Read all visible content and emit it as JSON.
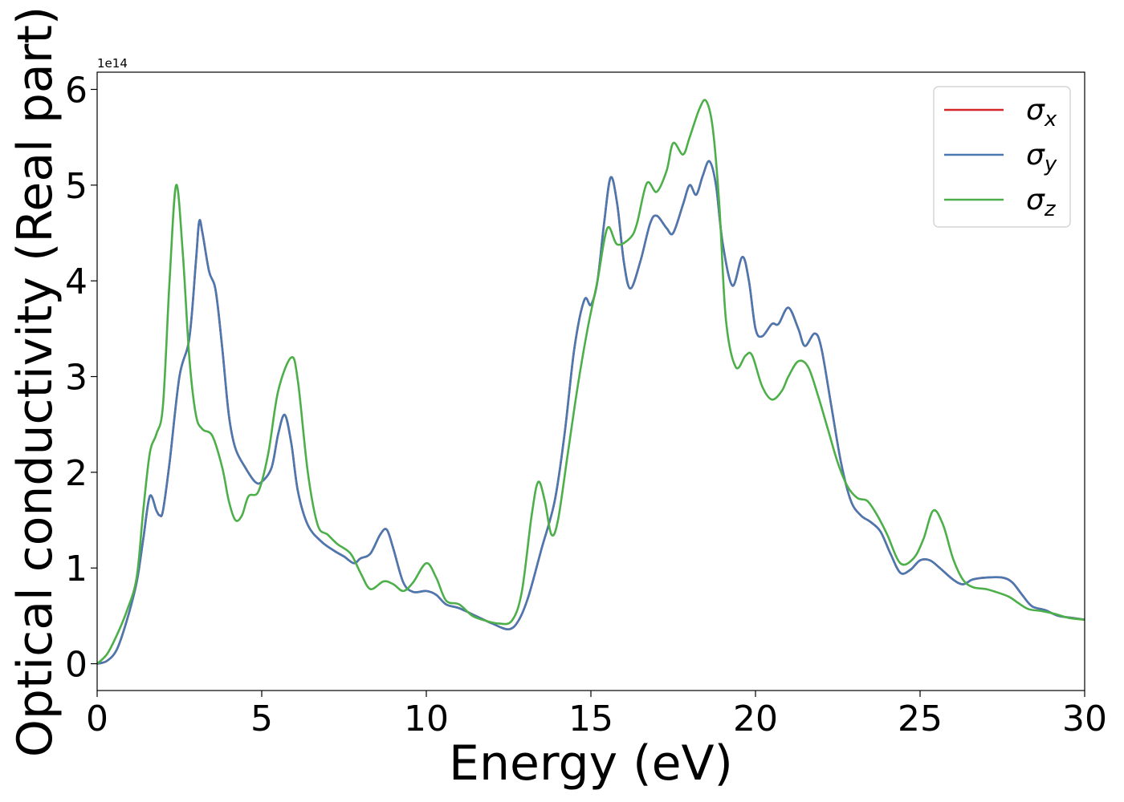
{
  "chart_data": {
    "type": "line",
    "xlabel": "Energy (eV)",
    "ylabel": "Optical conductivity (Real part)",
    "y_offset_label": "1e14",
    "xlim": [
      0,
      30
    ],
    "ylim": [
      -0.28,
      6.18
    ],
    "x_ticks": [
      0,
      5,
      10,
      15,
      20,
      25,
      30
    ],
    "y_ticks": [
      0,
      1,
      2,
      3,
      4,
      5,
      6
    ],
    "grid": false,
    "legend_position": "top-right",
    "series": [
      {
        "name": "σx",
        "color": "#d62728",
        "points": [
          [
            0,
            0
          ],
          [
            0.3,
            0.03
          ],
          [
            0.6,
            0.15
          ],
          [
            0.9,
            0.45
          ],
          [
            1.2,
            0.85
          ],
          [
            1.4,
            1.3
          ],
          [
            1.6,
            1.75
          ],
          [
            1.8,
            1.6
          ],
          [
            1.9,
            1.55
          ],
          [
            2.0,
            1.6
          ],
          [
            2.2,
            2.1
          ],
          [
            2.5,
            3.0
          ],
          [
            2.8,
            3.4
          ],
          [
            3.0,
            4.2
          ],
          [
            3.1,
            4.62
          ],
          [
            3.2,
            4.5
          ],
          [
            3.4,
            4.1
          ],
          [
            3.6,
            3.9
          ],
          [
            3.8,
            3.3
          ],
          [
            4.0,
            2.6
          ],
          [
            4.2,
            2.25
          ],
          [
            4.5,
            2.05
          ],
          [
            4.8,
            1.9
          ],
          [
            5.0,
            1.9
          ],
          [
            5.3,
            2.05
          ],
          [
            5.5,
            2.4
          ],
          [
            5.7,
            2.6
          ],
          [
            5.9,
            2.3
          ],
          [
            6.1,
            1.8
          ],
          [
            6.4,
            1.45
          ],
          [
            6.8,
            1.28
          ],
          [
            7.2,
            1.18
          ],
          [
            7.5,
            1.12
          ],
          [
            7.8,
            1.05
          ],
          [
            8.0,
            1.1
          ],
          [
            8.3,
            1.15
          ],
          [
            8.6,
            1.35
          ],
          [
            8.8,
            1.4
          ],
          [
            9.0,
            1.2
          ],
          [
            9.3,
            0.85
          ],
          [
            9.6,
            0.75
          ],
          [
            10.0,
            0.76
          ],
          [
            10.3,
            0.72
          ],
          [
            10.6,
            0.62
          ],
          [
            11.0,
            0.58
          ],
          [
            11.5,
            0.5
          ],
          [
            12.0,
            0.42
          ],
          [
            12.5,
            0.36
          ],
          [
            12.8,
            0.45
          ],
          [
            13.1,
            0.7
          ],
          [
            13.5,
            1.2
          ],
          [
            13.9,
            1.7
          ],
          [
            14.2,
            2.4
          ],
          [
            14.5,
            3.3
          ],
          [
            14.8,
            3.8
          ],
          [
            15.0,
            3.75
          ],
          [
            15.2,
            4.0
          ],
          [
            15.4,
            4.6
          ],
          [
            15.6,
            5.08
          ],
          [
            15.8,
            4.8
          ],
          [
            16.0,
            4.2
          ],
          [
            16.2,
            3.92
          ],
          [
            16.5,
            4.2
          ],
          [
            16.8,
            4.6
          ],
          [
            17.0,
            4.68
          ],
          [
            17.3,
            4.55
          ],
          [
            17.5,
            4.5
          ],
          [
            17.8,
            4.8
          ],
          [
            18.0,
            5.0
          ],
          [
            18.2,
            4.9
          ],
          [
            18.4,
            5.1
          ],
          [
            18.6,
            5.25
          ],
          [
            18.8,
            5.0
          ],
          [
            19.0,
            4.4
          ],
          [
            19.3,
            3.95
          ],
          [
            19.6,
            4.25
          ],
          [
            19.8,
            4.0
          ],
          [
            20.0,
            3.5
          ],
          [
            20.2,
            3.42
          ],
          [
            20.5,
            3.55
          ],
          [
            20.7,
            3.55
          ],
          [
            21.0,
            3.72
          ],
          [
            21.3,
            3.5
          ],
          [
            21.5,
            3.32
          ],
          [
            21.8,
            3.45
          ],
          [
            22.0,
            3.3
          ],
          [
            22.3,
            2.7
          ],
          [
            22.6,
            2.1
          ],
          [
            22.9,
            1.7
          ],
          [
            23.2,
            1.55
          ],
          [
            23.5,
            1.48
          ],
          [
            23.8,
            1.38
          ],
          [
            24.1,
            1.15
          ],
          [
            24.4,
            0.95
          ],
          [
            24.7,
            0.98
          ],
          [
            25.0,
            1.08
          ],
          [
            25.3,
            1.08
          ],
          [
            25.6,
            1.0
          ],
          [
            26.0,
            0.88
          ],
          [
            26.3,
            0.83
          ],
          [
            26.6,
            0.88
          ],
          [
            27.0,
            0.9
          ],
          [
            27.5,
            0.9
          ],
          [
            27.8,
            0.85
          ],
          [
            28.1,
            0.72
          ],
          [
            28.4,
            0.6
          ],
          [
            28.8,
            0.56
          ],
          [
            29.2,
            0.5
          ],
          [
            29.6,
            0.48
          ],
          [
            30.0,
            0.46
          ]
        ]
      },
      {
        "name": "σy",
        "color": "#4a78b0",
        "points": [
          [
            0,
            0
          ],
          [
            0.3,
            0.03
          ],
          [
            0.6,
            0.15
          ],
          [
            0.9,
            0.45
          ],
          [
            1.2,
            0.85
          ],
          [
            1.4,
            1.3
          ],
          [
            1.6,
            1.75
          ],
          [
            1.8,
            1.6
          ],
          [
            1.9,
            1.55
          ],
          [
            2.0,
            1.6
          ],
          [
            2.2,
            2.1
          ],
          [
            2.5,
            3.0
          ],
          [
            2.8,
            3.4
          ],
          [
            3.0,
            4.2
          ],
          [
            3.1,
            4.62
          ],
          [
            3.2,
            4.5
          ],
          [
            3.4,
            4.1
          ],
          [
            3.6,
            3.9
          ],
          [
            3.8,
            3.3
          ],
          [
            4.0,
            2.6
          ],
          [
            4.2,
            2.25
          ],
          [
            4.5,
            2.05
          ],
          [
            4.8,
            1.9
          ],
          [
            5.0,
            1.9
          ],
          [
            5.3,
            2.05
          ],
          [
            5.5,
            2.4
          ],
          [
            5.7,
            2.6
          ],
          [
            5.9,
            2.3
          ],
          [
            6.1,
            1.8
          ],
          [
            6.4,
            1.45
          ],
          [
            6.8,
            1.28
          ],
          [
            7.2,
            1.18
          ],
          [
            7.5,
            1.12
          ],
          [
            7.8,
            1.05
          ],
          [
            8.0,
            1.1
          ],
          [
            8.3,
            1.15
          ],
          [
            8.6,
            1.35
          ],
          [
            8.8,
            1.4
          ],
          [
            9.0,
            1.2
          ],
          [
            9.3,
            0.85
          ],
          [
            9.6,
            0.75
          ],
          [
            10.0,
            0.76
          ],
          [
            10.3,
            0.72
          ],
          [
            10.6,
            0.62
          ],
          [
            11.0,
            0.58
          ],
          [
            11.5,
            0.5
          ],
          [
            12.0,
            0.42
          ],
          [
            12.5,
            0.36
          ],
          [
            12.8,
            0.45
          ],
          [
            13.1,
            0.7
          ],
          [
            13.5,
            1.2
          ],
          [
            13.9,
            1.7
          ],
          [
            14.2,
            2.4
          ],
          [
            14.5,
            3.3
          ],
          [
            14.8,
            3.8
          ],
          [
            15.0,
            3.75
          ],
          [
            15.2,
            4.0
          ],
          [
            15.4,
            4.6
          ],
          [
            15.6,
            5.08
          ],
          [
            15.8,
            4.8
          ],
          [
            16.0,
            4.2
          ],
          [
            16.2,
            3.92
          ],
          [
            16.5,
            4.2
          ],
          [
            16.8,
            4.6
          ],
          [
            17.0,
            4.68
          ],
          [
            17.3,
            4.55
          ],
          [
            17.5,
            4.5
          ],
          [
            17.8,
            4.8
          ],
          [
            18.0,
            5.0
          ],
          [
            18.2,
            4.9
          ],
          [
            18.4,
            5.1
          ],
          [
            18.6,
            5.25
          ],
          [
            18.8,
            5.0
          ],
          [
            19.0,
            4.4
          ],
          [
            19.3,
            3.95
          ],
          [
            19.6,
            4.25
          ],
          [
            19.8,
            4.0
          ],
          [
            20.0,
            3.5
          ],
          [
            20.2,
            3.42
          ],
          [
            20.5,
            3.55
          ],
          [
            20.7,
            3.55
          ],
          [
            21.0,
            3.72
          ],
          [
            21.3,
            3.5
          ],
          [
            21.5,
            3.32
          ],
          [
            21.8,
            3.45
          ],
          [
            22.0,
            3.3
          ],
          [
            22.3,
            2.7
          ],
          [
            22.6,
            2.1
          ],
          [
            22.9,
            1.7
          ],
          [
            23.2,
            1.55
          ],
          [
            23.5,
            1.48
          ],
          [
            23.8,
            1.38
          ],
          [
            24.1,
            1.15
          ],
          [
            24.4,
            0.95
          ],
          [
            24.7,
            0.98
          ],
          [
            25.0,
            1.08
          ],
          [
            25.3,
            1.08
          ],
          [
            25.6,
            1.0
          ],
          [
            26.0,
            0.88
          ],
          [
            26.3,
            0.83
          ],
          [
            26.6,
            0.88
          ],
          [
            27.0,
            0.9
          ],
          [
            27.5,
            0.9
          ],
          [
            27.8,
            0.85
          ],
          [
            28.1,
            0.72
          ],
          [
            28.4,
            0.6
          ],
          [
            28.8,
            0.56
          ],
          [
            29.2,
            0.5
          ],
          [
            29.6,
            0.48
          ],
          [
            30.0,
            0.46
          ]
        ]
      },
      {
        "name": "σz",
        "color": "#4daf4a",
        "points": [
          [
            0,
            0
          ],
          [
            0.3,
            0.1
          ],
          [
            0.6,
            0.3
          ],
          [
            0.9,
            0.55
          ],
          [
            1.2,
            0.9
          ],
          [
            1.4,
            1.6
          ],
          [
            1.6,
            2.2
          ],
          [
            1.8,
            2.4
          ],
          [
            2.0,
            2.7
          ],
          [
            2.2,
            4.0
          ],
          [
            2.4,
            5.0
          ],
          [
            2.6,
            4.3
          ],
          [
            2.8,
            3.2
          ],
          [
            3.0,
            2.6
          ],
          [
            3.2,
            2.45
          ],
          [
            3.5,
            2.38
          ],
          [
            3.8,
            2.05
          ],
          [
            4.0,
            1.7
          ],
          [
            4.2,
            1.5
          ],
          [
            4.4,
            1.55
          ],
          [
            4.6,
            1.75
          ],
          [
            4.9,
            1.8
          ],
          [
            5.2,
            2.2
          ],
          [
            5.5,
            2.85
          ],
          [
            5.9,
            3.2
          ],
          [
            6.1,
            2.95
          ],
          [
            6.4,
            2.0
          ],
          [
            6.7,
            1.45
          ],
          [
            7.0,
            1.35
          ],
          [
            7.3,
            1.25
          ],
          [
            7.7,
            1.15
          ],
          [
            8.0,
            0.95
          ],
          [
            8.3,
            0.78
          ],
          [
            8.7,
            0.86
          ],
          [
            9.0,
            0.83
          ],
          [
            9.3,
            0.76
          ],
          [
            9.6,
            0.85
          ],
          [
            10.0,
            1.05
          ],
          [
            10.3,
            0.9
          ],
          [
            10.6,
            0.66
          ],
          [
            11.0,
            0.62
          ],
          [
            11.4,
            0.5
          ],
          [
            11.8,
            0.45
          ],
          [
            12.2,
            0.42
          ],
          [
            12.6,
            0.45
          ],
          [
            12.9,
            0.75
          ],
          [
            13.2,
            1.55
          ],
          [
            13.4,
            1.9
          ],
          [
            13.6,
            1.7
          ],
          [
            13.8,
            1.35
          ],
          [
            14.0,
            1.5
          ],
          [
            14.3,
            2.2
          ],
          [
            14.6,
            2.9
          ],
          [
            14.9,
            3.5
          ],
          [
            15.2,
            4.0
          ],
          [
            15.5,
            4.55
          ],
          [
            15.8,
            4.38
          ],
          [
            16.2,
            4.45
          ],
          [
            16.4,
            4.6
          ],
          [
            16.7,
            5.02
          ],
          [
            17.0,
            4.93
          ],
          [
            17.3,
            5.15
          ],
          [
            17.5,
            5.44
          ],
          [
            17.8,
            5.32
          ],
          [
            18.0,
            5.5
          ],
          [
            18.3,
            5.8
          ],
          [
            18.5,
            5.88
          ],
          [
            18.7,
            5.6
          ],
          [
            18.9,
            4.8
          ],
          [
            19.1,
            3.6
          ],
          [
            19.4,
            3.1
          ],
          [
            19.7,
            3.22
          ],
          [
            19.9,
            3.22
          ],
          [
            20.2,
            2.9
          ],
          [
            20.5,
            2.76
          ],
          [
            20.8,
            2.85
          ],
          [
            21.0,
            3.0
          ],
          [
            21.3,
            3.16
          ],
          [
            21.6,
            3.1
          ],
          [
            21.9,
            2.8
          ],
          [
            22.2,
            2.45
          ],
          [
            22.5,
            2.1
          ],
          [
            22.8,
            1.85
          ],
          [
            23.1,
            1.73
          ],
          [
            23.4,
            1.7
          ],
          [
            23.7,
            1.55
          ],
          [
            24.0,
            1.35
          ],
          [
            24.4,
            1.05
          ],
          [
            24.8,
            1.1
          ],
          [
            25.1,
            1.3
          ],
          [
            25.4,
            1.6
          ],
          [
            25.7,
            1.45
          ],
          [
            26.0,
            1.1
          ],
          [
            26.3,
            0.88
          ],
          [
            26.6,
            0.8
          ],
          [
            27.0,
            0.78
          ],
          [
            27.3,
            0.75
          ],
          [
            27.7,
            0.7
          ],
          [
            28.0,
            0.63
          ],
          [
            28.3,
            0.57
          ],
          [
            28.7,
            0.55
          ],
          [
            29.1,
            0.52
          ],
          [
            29.5,
            0.48
          ],
          [
            30.0,
            0.46
          ]
        ]
      }
    ]
  }
}
